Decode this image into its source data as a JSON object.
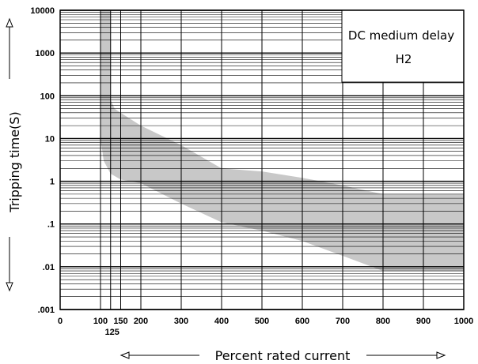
{
  "chart_data": {
    "type": "area",
    "title": "DC medium delay",
    "subtitle": "H2",
    "xlabel": "Percent rated current",
    "ylabel": "Tripping time(S)",
    "xlim": [
      0,
      1000
    ],
    "ylim": [
      0.001,
      10000
    ],
    "yscale": "log",
    "grid": true,
    "legend_position": "top-right",
    "x_ticks": [
      "0",
      "100",
      "150",
      "200",
      "300",
      "400",
      "500",
      "600",
      "700",
      "800",
      "900",
      "1000"
    ],
    "x_tick_values": [
      0,
      100,
      150,
      200,
      300,
      400,
      500,
      600,
      700,
      800,
      900,
      1000
    ],
    "x_ticks_secondary": [
      "125"
    ],
    "x_ticks_secondary_values": [
      125
    ],
    "y_ticks": [
      "10000",
      "1000",
      "100",
      "10",
      "1",
      ".1",
      ".01",
      ".001"
    ],
    "y_tick_values": [
      10000,
      1000,
      100,
      10,
      1,
      0.1,
      0.01,
      0.001
    ],
    "series": [
      {
        "band": "trip-curve",
        "color": "#c8c8c8",
        "upper": [
          {
            "x": 100,
            "y": 10000
          },
          {
            "x": 125,
            "y": 10000
          },
          {
            "x": 125,
            "y": 80
          },
          {
            "x": 135,
            "y": 50
          },
          {
            "x": 150,
            "y": 40
          },
          {
            "x": 200,
            "y": 20
          },
          {
            "x": 300,
            "y": 7
          },
          {
            "x": 400,
            "y": 2
          },
          {
            "x": 500,
            "y": 1.7
          },
          {
            "x": 600,
            "y": 1.2
          },
          {
            "x": 700,
            "y": 0.8
          },
          {
            "x": 800,
            "y": 0.5
          },
          {
            "x": 900,
            "y": 0.5
          },
          {
            "x": 1000,
            "y": 0.5
          }
        ],
        "lower": [
          {
            "x": 100,
            "y": 10
          },
          {
            "x": 108,
            "y": 3
          },
          {
            "x": 125,
            "y": 1.5
          },
          {
            "x": 150,
            "y": 1.1
          },
          {
            "x": 200,
            "y": 0.9
          },
          {
            "x": 300,
            "y": 0.3
          },
          {
            "x": 400,
            "y": 0.11
          },
          {
            "x": 500,
            "y": 0.07
          },
          {
            "x": 600,
            "y": 0.04
          },
          {
            "x": 700,
            "y": 0.018
          },
          {
            "x": 800,
            "y": 0.008
          },
          {
            "x": 900,
            "y": 0.008
          },
          {
            "x": 1000,
            "y": 0.008
          }
        ]
      }
    ]
  },
  "colors": {
    "band": "#c8c8c8",
    "grid": "#000000",
    "background": "#ffffff"
  },
  "icons": {
    "y_axis_arrows": [
      "up-arrow-icon",
      "down-arrow-icon"
    ],
    "x_axis_arrows": [
      "left-arrow-icon",
      "right-arrow-icon"
    ]
  }
}
